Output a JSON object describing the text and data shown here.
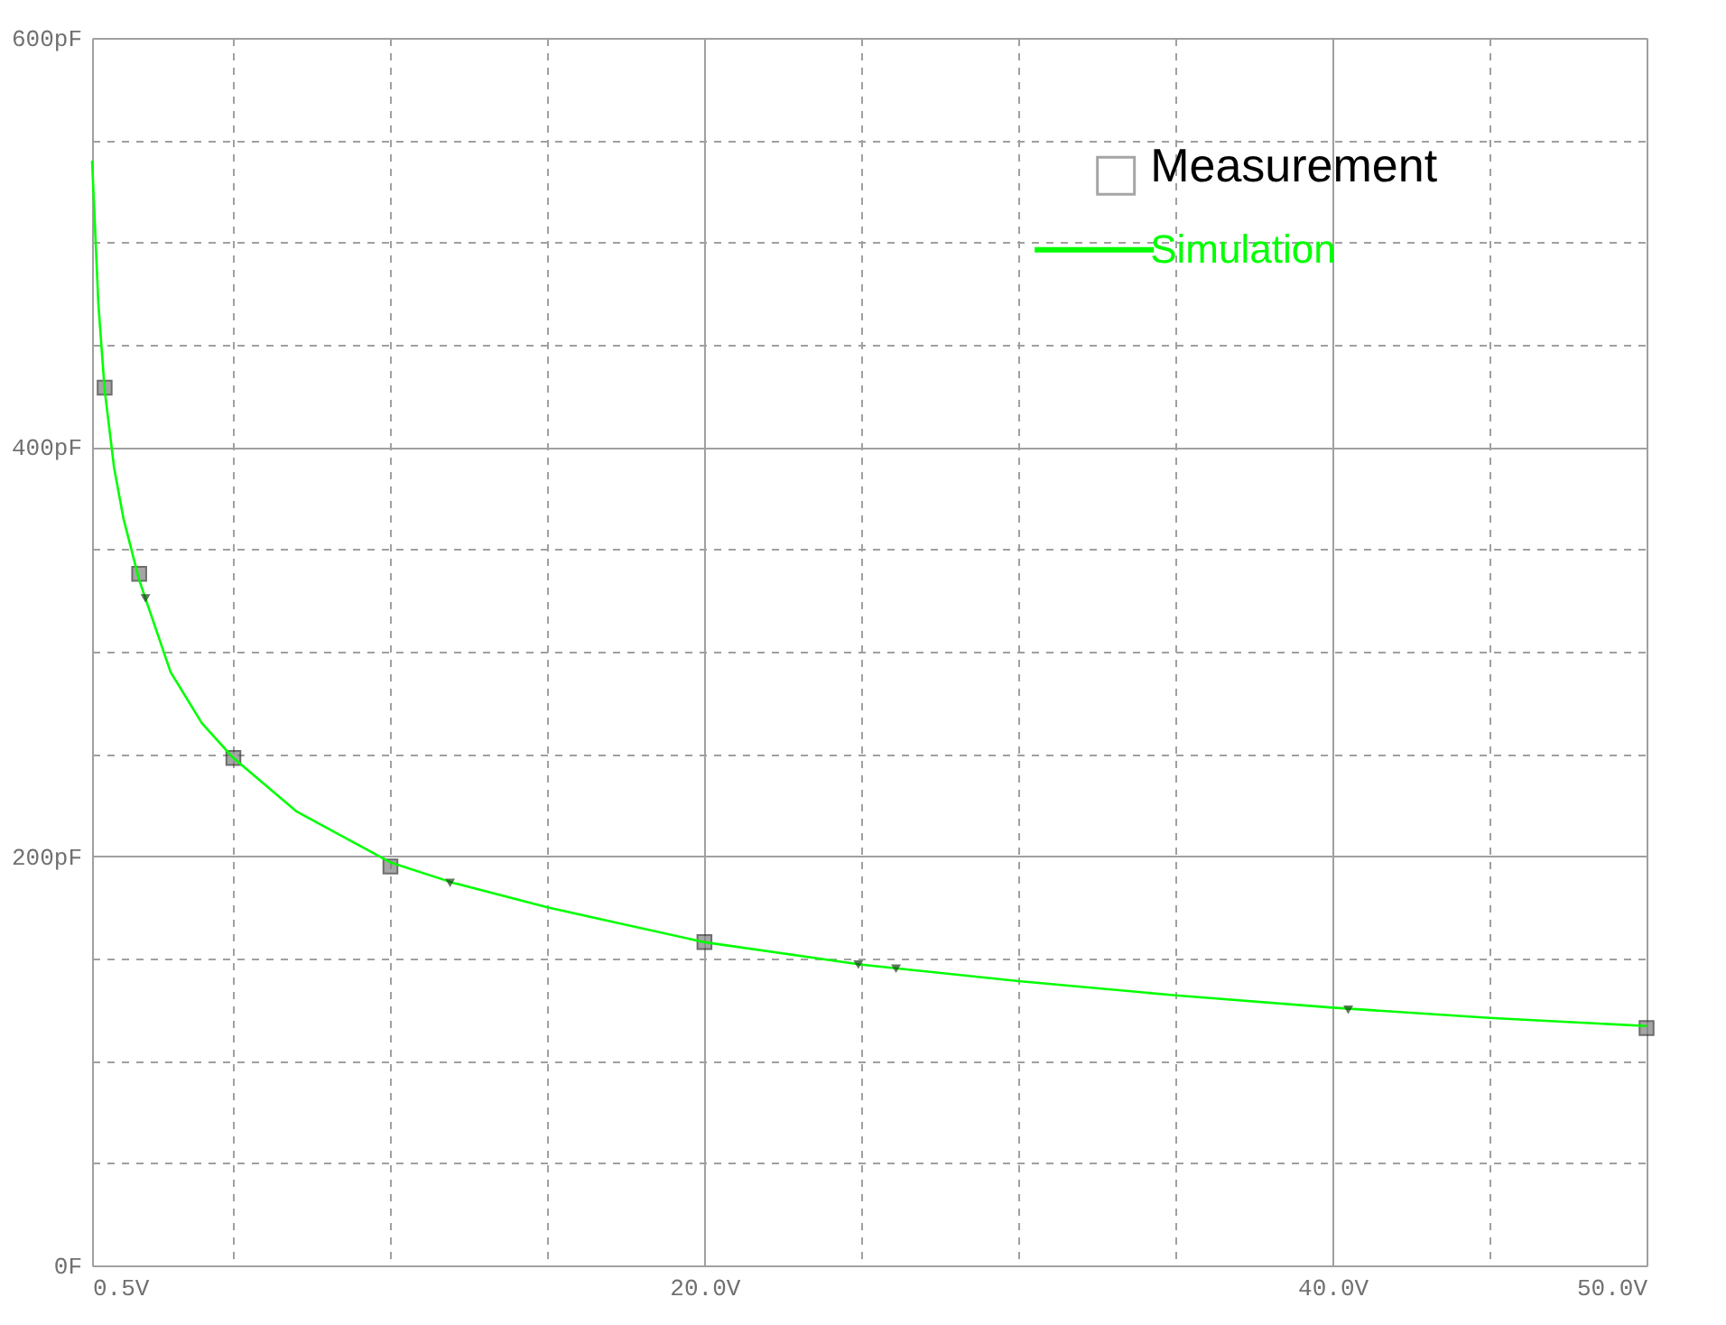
{
  "chart_data": {
    "type": "line",
    "xlim": [
      0.5,
      50
    ],
    "ylim": [
      0,
      600
    ],
    "xticks": [
      {
        "value": 0.5,
        "label": "0.5V"
      },
      {
        "value": 5,
        "label": null
      },
      {
        "value": 10,
        "label": null
      },
      {
        "value": 15,
        "label": null
      },
      {
        "value": 20,
        "label": "20.0V"
      },
      {
        "value": 25,
        "label": null
      },
      {
        "value": 30,
        "label": null
      },
      {
        "value": 35,
        "label": null
      },
      {
        "value": 40,
        "label": "40.0V"
      },
      {
        "value": 45,
        "label": null
      },
      {
        "value": 50,
        "label": "50.0V"
      }
    ],
    "yticks": [
      {
        "value": 0,
        "label": "0F"
      },
      {
        "value": 50,
        "label": null
      },
      {
        "value": 100,
        "label": null
      },
      {
        "value": 150,
        "label": null
      },
      {
        "value": 200,
        "label": "200pF"
      },
      {
        "value": 250,
        "label": null
      },
      {
        "value": 300,
        "label": null
      },
      {
        "value": 350,
        "label": null
      },
      {
        "value": 400,
        "label": "400pF"
      },
      {
        "value": 450,
        "label": null
      },
      {
        "value": 500,
        "label": null
      },
      {
        "value": 550,
        "label": null
      },
      {
        "value": 600,
        "label": "600pF"
      }
    ],
    "grid": true,
    "legend": "top right",
    "series": [
      {
        "name": "Measurement",
        "type": "scatter",
        "marker": "square",
        "color": "#808080",
        "x": [
          0.9,
          2,
          5,
          10,
          20,
          50
        ],
        "values": [
          429,
          338,
          248,
          195,
          158,
          116
        ]
      },
      {
        "name": "Simulation",
        "marker": "none",
        "color": "#00ff00",
        "x": [
          0.5,
          0.7,
          0.9,
          1.2,
          1.5,
          2,
          3,
          4,
          5,
          7,
          10,
          12,
          15,
          20,
          25,
          30,
          35,
          40,
          45,
          50
        ],
        "values": [
          540,
          470,
          428,
          390,
          365,
          335,
          290,
          265,
          248,
          222,
          197,
          187,
          175,
          158,
          147,
          139,
          132,
          126,
          121,
          117
        ]
      },
      {
        "type": "scatter",
        "marker": "triangle",
        "color": "#1a401a",
        "x": [
          2.2,
          11.9,
          24.9,
          26.1,
          40.5
        ],
        "values": [
          326,
          187,
          147,
          145,
          125
        ]
      }
    ]
  }
}
